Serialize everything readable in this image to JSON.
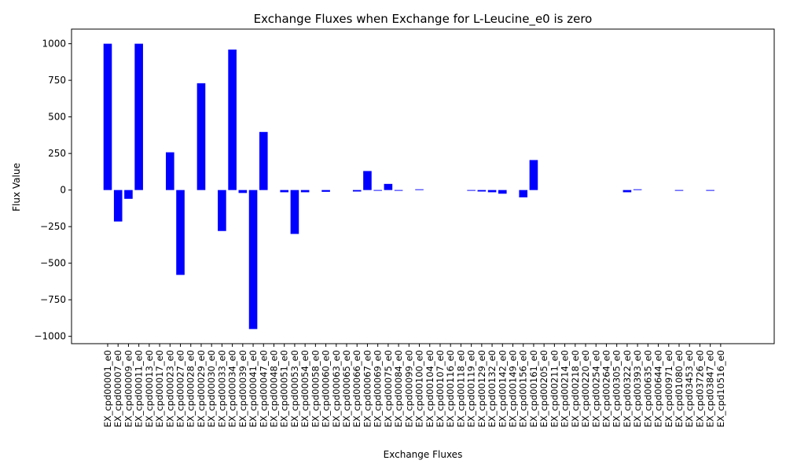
{
  "chart_data": {
    "type": "bar",
    "title": "Exchange Fluxes when Exchange for L-Leucine_e0 is zero",
    "xlabel": "Exchange Fluxes",
    "ylabel": "Flux Value",
    "ylim": [
      -1050,
      1100
    ],
    "yticks": [
      -1000,
      -750,
      -500,
      -250,
      0,
      250,
      500,
      750,
      1000
    ],
    "grid": false,
    "legend": "none",
    "bar_color": "#0000ff",
    "categories": [
      "EX_cpd00001_e0",
      "EX_cpd00007_e0",
      "EX_cpd00009_e0",
      "EX_cpd00011_e0",
      "EX_cpd00013_e0",
      "EX_cpd00017_e0",
      "EX_cpd00023_e0",
      "EX_cpd00027_e0",
      "EX_cpd00028_e0",
      "EX_cpd00029_e0",
      "EX_cpd00030_e0",
      "EX_cpd00033_e0",
      "EX_cpd00034_e0",
      "EX_cpd00039_e0",
      "EX_cpd00041_e0",
      "EX_cpd00047_e0",
      "EX_cpd00048_e0",
      "EX_cpd00051_e0",
      "EX_cpd00053_e0",
      "EX_cpd00054_e0",
      "EX_cpd00058_e0",
      "EX_cpd00060_e0",
      "EX_cpd00063_e0",
      "EX_cpd00065_e0",
      "EX_cpd00066_e0",
      "EX_cpd00067_e0",
      "EX_cpd00069_e0",
      "EX_cpd00075_e0",
      "EX_cpd00084_e0",
      "EX_cpd00099_e0",
      "EX_cpd00100_e0",
      "EX_cpd00104_e0",
      "EX_cpd00107_e0",
      "EX_cpd00116_e0",
      "EX_cpd00118_e0",
      "EX_cpd00119_e0",
      "EX_cpd00129_e0",
      "EX_cpd00132_e0",
      "EX_cpd00142_e0",
      "EX_cpd00149_e0",
      "EX_cpd00156_e0",
      "EX_cpd00161_e0",
      "EX_cpd00205_e0",
      "EX_cpd00211_e0",
      "EX_cpd00214_e0",
      "EX_cpd00218_e0",
      "EX_cpd00220_e0",
      "EX_cpd00254_e0",
      "EX_cpd00264_e0",
      "EX_cpd00305_e0",
      "EX_cpd00322_e0",
      "EX_cpd00393_e0",
      "EX_cpd00635_e0",
      "EX_cpd00644_e0",
      "EX_cpd00971_e0",
      "EX_cpd01080_e0",
      "EX_cpd03453_e0",
      "EX_cpd03726_e0",
      "EX_cpd03847_e0",
      "EX_cpd10516_e0"
    ],
    "values": [
      1000,
      -215,
      -60,
      1000,
      0,
      0,
      258,
      -580,
      0,
      730,
      0,
      -280,
      960,
      -20,
      -950,
      397,
      0,
      -15,
      -300,
      -15,
      0,
      -12,
      0,
      0,
      -10,
      130,
      -5,
      42,
      -5,
      0,
      5,
      0,
      0,
      0,
      0,
      -5,
      -10,
      -15,
      -25,
      0,
      -50,
      205,
      0,
      0,
      0,
      0,
      0,
      0,
      0,
      0,
      -15,
      5,
      0,
      0,
      0,
      -5,
      0,
      0,
      -5,
      0
    ]
  }
}
